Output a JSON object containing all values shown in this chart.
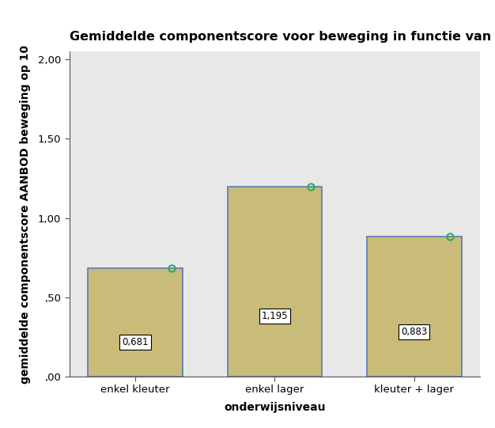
{
  "title": "Gemiddelde componentscore voor beweging in functie van onderwijsgraad",
  "xlabel": "onderwijsniveau",
  "ylabel": "gemiddelde componentscore AANBOD beweging op 10",
  "categories": [
    "enkel kleuter",
    "enkel lager",
    "kleuter + lager"
  ],
  "values": [
    0.681,
    1.195,
    0.883
  ],
  "bar_color": "#C8BC78",
  "bar_edge_color": "#5A7AAF",
  "bar_edge_width": 1.2,
  "marker_color": "#2EAA60",
  "marker_size": 6,
  "ylim": [
    0.0,
    2.0
  ],
  "yticks": [
    0.0,
    0.5,
    1.0,
    1.5,
    2.0
  ],
  "ytick_labels": [
    ",00",
    ",50",
    "1,00",
    "1,50",
    "2,00"
  ],
  "outer_bg_color": "#FFFFFF",
  "plot_bg_color": "#E8E8E8",
  "title_fontsize": 11.5,
  "axis_label_fontsize": 10,
  "tick_fontsize": 9.5,
  "label_fontsize": 8.5,
  "bar_width": 0.68
}
